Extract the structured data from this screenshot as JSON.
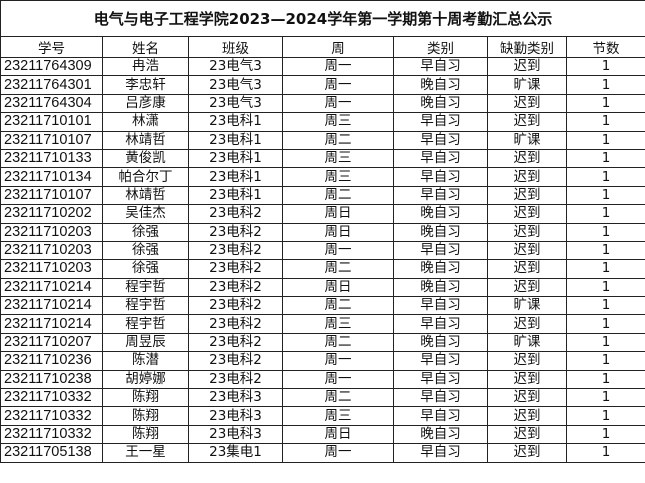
{
  "title": "电气与电子工程学院2023—2024学年第一学期第十周考勤汇总公示",
  "columns": [
    "学号",
    "姓名",
    "班级",
    "周",
    "类别",
    "缺勤类别",
    "节数"
  ],
  "rows": [
    [
      "23211764309",
      "冉浩",
      "23电气3",
      "周一",
      "早自习",
      "迟到",
      "1"
    ],
    [
      "23211764301",
      "李忠轩",
      "23电气3",
      "周一",
      "晚自习",
      "旷课",
      "1"
    ],
    [
      "23211764304",
      "吕彦康",
      "23电气3",
      "周一",
      "晚自习",
      "迟到",
      "1"
    ],
    [
      "23211710101",
      "林潇",
      "23电科1",
      "周三",
      "早自习",
      "迟到",
      "1"
    ],
    [
      "23211710107",
      "林靖哲",
      "23电科1",
      "周二",
      "早自习",
      "旷课",
      "1"
    ],
    [
      "23211710133",
      "黄俊凯",
      "23电科1",
      "周三",
      "早自习",
      "迟到",
      "1"
    ],
    [
      "23211710134",
      "帕合尔丁",
      "23电科1",
      "周三",
      "早自习",
      "迟到",
      "1"
    ],
    [
      "23211710107",
      "林靖哲",
      "23电科1",
      "周二",
      "早自习",
      "迟到",
      "1"
    ],
    [
      "23211710202",
      "吴佳杰",
      "23电科2",
      "周日",
      "晚自习",
      "迟到",
      "1"
    ],
    [
      "23211710203",
      "徐强",
      "23电科2",
      "周日",
      "晚自习",
      "迟到",
      "1"
    ],
    [
      "23211710203",
      "徐强",
      "23电科2",
      "周一",
      "早自习",
      "迟到",
      "1"
    ],
    [
      "23211710203",
      "徐强",
      "23电科2",
      "周二",
      "晚自习",
      "迟到",
      "1"
    ],
    [
      "23211710214",
      "程宇哲",
      "23电科2",
      "周日",
      "晚自习",
      "迟到",
      "1"
    ],
    [
      "23211710214",
      "程宇哲",
      "23电科2",
      "周二",
      "早自习",
      "旷课",
      "1"
    ],
    [
      "23211710214",
      "程宇哲",
      "23电科2",
      "周三",
      "早自习",
      "迟到",
      "1"
    ],
    [
      "23211710207",
      "周昱辰",
      "23电科2",
      "周二",
      "晚自习",
      "旷课",
      "1"
    ],
    [
      "23211710236",
      "陈潜",
      "23电科2",
      "周一",
      "早自习",
      "迟到",
      "1"
    ],
    [
      "23211710238",
      "胡婷娜",
      "23电科2",
      "周一",
      "早自习",
      "迟到",
      "1"
    ],
    [
      "23211710332",
      "陈翔",
      "23电科3",
      "周二",
      "早自习",
      "迟到",
      "1"
    ],
    [
      "23211710332",
      "陈翔",
      "23电科3",
      "周三",
      "早自习",
      "迟到",
      "1"
    ],
    [
      "23211710332",
      "陈翔",
      "23电科3",
      "周日",
      "晚自习",
      "迟到",
      "1"
    ],
    [
      "23211705138",
      "王一星",
      "23集电1",
      "周一",
      "早自习",
      "迟到",
      "1"
    ]
  ]
}
